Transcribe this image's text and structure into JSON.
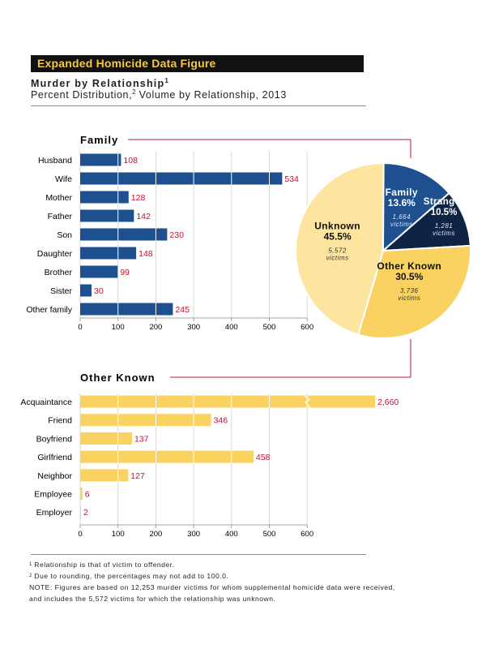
{
  "header": {
    "title": "Expanded Homicide Data Figure",
    "heading": "Murder by Relationship",
    "heading_sup": "1",
    "subheading_a": "Percent Distribution,",
    "subheading_sup": "2",
    "subheading_b": " Volume by Relationship, 2013"
  },
  "colors": {
    "family": "#1e4f8e",
    "stranger": "#0f2444",
    "other_known": "#f9d262",
    "unknown": "#fde5a0",
    "value_label": "#c41230"
  },
  "chart_data": [
    {
      "type": "bar",
      "orientation": "horizontal",
      "title": "Family",
      "categories": [
        "Husband",
        "Wife",
        "Mother",
        "Father",
        "Son",
        "Daughter",
        "Brother",
        "Sister",
        "Other family"
      ],
      "values": [
        108,
        534,
        128,
        142,
        230,
        148,
        99,
        30,
        245
      ],
      "value_labels": [
        "108",
        "534",
        "128",
        "142",
        "230",
        "148",
        "99",
        "30",
        "245"
      ],
      "xlim": [
        0,
        600
      ],
      "xticks": [
        0,
        100,
        200,
        300,
        400,
        500,
        600
      ],
      "xtick_labels": [
        "0",
        "100",
        "200",
        "300",
        "400",
        "500",
        "600"
      ],
      "grid": true,
      "color": "#1e4f8e"
    },
    {
      "type": "bar",
      "orientation": "horizontal",
      "title": "Other Known",
      "categories": [
        "Acquaintance",
        "Friend",
        "Boyfriend",
        "Girlfriend",
        "Neighbor",
        "Employee",
        "Employer"
      ],
      "values": [
        2660,
        346,
        137,
        458,
        127,
        6,
        2
      ],
      "value_labels": [
        "2,660",
        "346",
        "137",
        "458",
        "127",
        "6",
        "2"
      ],
      "axis_break": "Acquaintance",
      "xlim": [
        0,
        600
      ],
      "xticks": [
        0,
        100,
        200,
        300,
        400,
        500,
        600
      ],
      "xtick_labels": [
        "0",
        "100",
        "200",
        "300",
        "400",
        "500",
        "600"
      ],
      "grid": true,
      "color": "#f9d262"
    },
    {
      "type": "pie",
      "slices": [
        {
          "name": "Family",
          "percent": 13.6,
          "percent_label": "13.6%",
          "victims_count": "1,664",
          "victims_word": "victims",
          "color": "#1e4f8e"
        },
        {
          "name": "Stranger",
          "percent": 10.5,
          "percent_label": "10.5%",
          "victims_count": "1,281",
          "victims_word": "victims",
          "color": "#0f2444"
        },
        {
          "name": "Other Known",
          "percent": 30.5,
          "percent_label": "30.5%",
          "victims_count": "3,736",
          "victims_word": "victims",
          "color": "#f9d262"
        },
        {
          "name": "Unknown",
          "percent": 45.5,
          "percent_label": "45.5%",
          "victims_count": "5,572",
          "victims_word": "victims",
          "color": "#fde5a0"
        }
      ]
    }
  ],
  "notes": [
    {
      "sup": "1",
      "text": " Relationship is that of victim to offender."
    },
    {
      "sup": "2",
      "text": " Due to rounding, the percentages may not add to 100.0."
    },
    {
      "sup": "",
      "text": "NOTE:  Figures are based on 12,253 murder victims for whom supplemental homicide data were received,"
    },
    {
      "sup": "",
      "text": "and includes the 5,572 victims for which the relationship was unknown."
    }
  ]
}
